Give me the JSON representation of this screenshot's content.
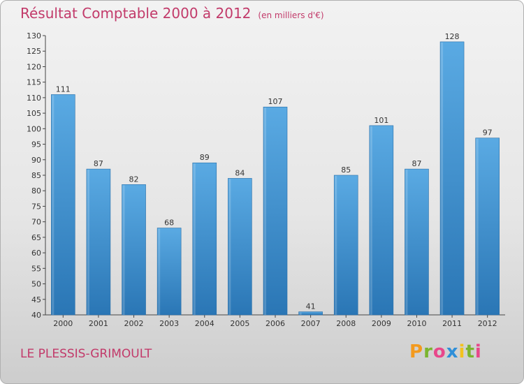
{
  "header": {
    "title": "Résultat Comptable 2000 à 2012",
    "subtitle": "(en milliers d'€)"
  },
  "footer": {
    "commune": "LE PLESSIS-GRIMOULT",
    "logo_text": "Proxiti",
    "logo_letters": [
      "P",
      "r",
      "o",
      "x",
      "i",
      "t",
      "i"
    ],
    "logo_colors": [
      "#f39a1e",
      "#7bb52f",
      "#e8478b",
      "#2f8fd8",
      "#f3c21e",
      "#7bb52f",
      "#e8478b"
    ]
  },
  "colors": {
    "bar_light": "#5aaae3",
    "bar_dark": "#2a76b5",
    "title": "#c23a6a"
  },
  "chart_data": {
    "type": "bar",
    "title": "Résultat Comptable 2000 à 2012",
    "subtitle": "(en milliers d'€)",
    "xlabel": "",
    "ylabel": "",
    "categories": [
      "2000",
      "2001",
      "2002",
      "2003",
      "2004",
      "2005",
      "2006",
      "2007",
      "2008",
      "2009",
      "2010",
      "2011",
      "2012"
    ],
    "values": [
      111,
      87,
      82,
      68,
      89,
      84,
      107,
      41,
      85,
      101,
      87,
      128,
      97
    ],
    "ylim": [
      40,
      130
    ],
    "yticks": [
      40,
      45,
      50,
      55,
      60,
      65,
      70,
      75,
      80,
      85,
      90,
      95,
      100,
      105,
      110,
      115,
      120,
      125,
      130
    ],
    "grid": false,
    "legend": "none"
  }
}
